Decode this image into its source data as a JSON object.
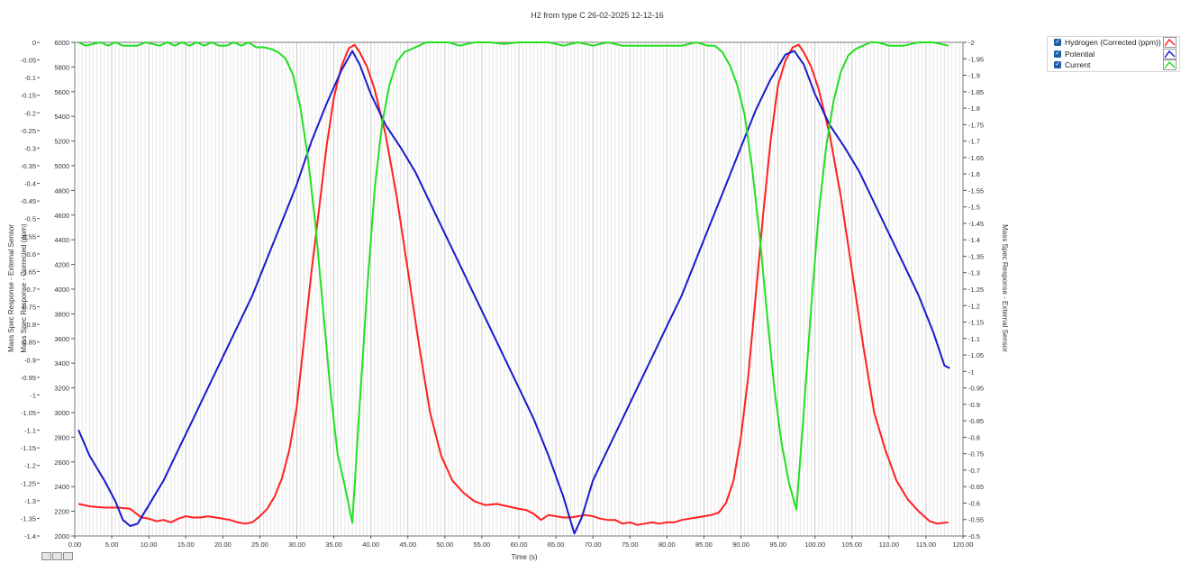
{
  "chart_data": {
    "type": "line",
    "title": "H2 from type C 26-02-2025 12-12-16",
    "xlabel": "Time (s)",
    "y_axes": {
      "outer_left": {
        "label": "Mass Spec Response - External Sensor",
        "range": [
          -1.4,
          0
        ],
        "ticks": [
          "0",
          "-0.05",
          "-0.1",
          "-0.15",
          "-0.2",
          "-0.25",
          "-0.3",
          "-0.35",
          "-0.4",
          "-0.45",
          "-0.5",
          "-0.55",
          "-0.6",
          "-0.65",
          "-0.7",
          "-0.75",
          "-0.8",
          "-0.85",
          "-0.9",
          "-0.95",
          "-1",
          "-1.05",
          "-1.1",
          "-1.15",
          "-1.2",
          "-1.25",
          "-1.3",
          "-1.35",
          "-1.4"
        ]
      },
      "inner_left": {
        "label": "Mass Spec Response - Corrected (ppm)",
        "range": [
          2000,
          6000
        ],
        "ticks": [
          "6000",
          "5800",
          "5600",
          "5400",
          "5200",
          "5000",
          "4800",
          "4600",
          "4400",
          "4200",
          "4000",
          "3800",
          "3600",
          "3400",
          "3200",
          "3000",
          "2800",
          "2600",
          "2400",
          "2200",
          "2000"
        ]
      },
      "right": {
        "label": "Mass Spec Response - External Sensor",
        "range": [
          -0.5,
          -2
        ],
        "ticks": [
          "-2",
          "-1.95",
          "-1.9",
          "-1.85",
          "-1.8",
          "-1.75",
          "-1.7",
          "-1.65",
          "-1.6",
          "-1.55",
          "-1.5",
          "-1.45",
          "-1.4",
          "-1.35",
          "-1.3",
          "-1.25",
          "-1.2",
          "-1.15",
          "-1.1",
          "-1.05",
          "-1",
          "-0.95",
          "-0.9",
          "-0.85",
          "-0.8",
          "-0.75",
          "-0.7",
          "-0.65",
          "-0.6",
          "-0.55",
          "-0.5"
        ]
      }
    },
    "xlim": [
      0,
      120
    ],
    "x_ticks": [
      "0.00",
      "5.00",
      "10.00",
      "15.00",
      "20.00",
      "25.00",
      "30.00",
      "35.00",
      "40.00",
      "45.00",
      "50.00",
      "55.00",
      "60.00",
      "65.00",
      "70.00",
      "75.00",
      "80.00",
      "85.00",
      "90.00",
      "95.00",
      "100.00",
      "105.00",
      "110.00",
      "115.00",
      "120.00"
    ],
    "grid": true,
    "legend_position": "top-right",
    "series": [
      {
        "name": "Hydrogen (Corrected (ppm))",
        "color": "#ff2020",
        "axis": "inner_left",
        "points": [
          [
            0.5,
            2260
          ],
          [
            2,
            2240
          ],
          [
            4,
            2230
          ],
          [
            6,
            2230
          ],
          [
            7.5,
            2220
          ],
          [
            9,
            2150
          ],
          [
            10,
            2140
          ],
          [
            11,
            2120
          ],
          [
            12,
            2130
          ],
          [
            13,
            2110
          ],
          [
            14,
            2140
          ],
          [
            15,
            2160
          ],
          [
            16,
            2150
          ],
          [
            17,
            2150
          ],
          [
            18,
            2160
          ],
          [
            19,
            2150
          ],
          [
            20,
            2140
          ],
          [
            21,
            2130
          ],
          [
            22,
            2110
          ],
          [
            23,
            2100
          ],
          [
            24,
            2110
          ],
          [
            25,
            2160
          ],
          [
            26,
            2220
          ],
          [
            27,
            2320
          ],
          [
            28,
            2470
          ],
          [
            29,
            2700
          ],
          [
            30,
            3050
          ],
          [
            31,
            3600
          ],
          [
            32,
            4150
          ],
          [
            33,
            4650
          ],
          [
            34,
            5150
          ],
          [
            35,
            5550
          ],
          [
            36,
            5800
          ],
          [
            37,
            5950
          ],
          [
            37.8,
            5980
          ],
          [
            38.5,
            5920
          ],
          [
            39.5,
            5800
          ],
          [
            40.5,
            5620
          ],
          [
            42,
            5250
          ],
          [
            43.5,
            4750
          ],
          [
            45,
            4150
          ],
          [
            46.5,
            3550
          ],
          [
            48,
            3000
          ],
          [
            49.5,
            2650
          ],
          [
            51,
            2450
          ],
          [
            52.5,
            2350
          ],
          [
            54,
            2280
          ],
          [
            55.5,
            2250
          ],
          [
            57,
            2260
          ],
          [
            58.5,
            2240
          ],
          [
            60,
            2220
          ],
          [
            61,
            2210
          ],
          [
            62,
            2180
          ],
          [
            63,
            2130
          ],
          [
            64,
            2170
          ],
          [
            65,
            2160
          ],
          [
            66,
            2150
          ],
          [
            67,
            2150
          ],
          [
            68,
            2160
          ],
          [
            69,
            2170
          ],
          [
            70,
            2160
          ],
          [
            71,
            2140
          ],
          [
            72,
            2130
          ],
          [
            73,
            2130
          ],
          [
            74,
            2100
          ],
          [
            75,
            2110
          ],
          [
            76,
            2090
          ],
          [
            77,
            2100
          ],
          [
            78,
            2110
          ],
          [
            79,
            2100
          ],
          [
            80,
            2110
          ],
          [
            81,
            2110
          ],
          [
            82,
            2130
          ],
          [
            83,
            2140
          ],
          [
            84,
            2150
          ],
          [
            85,
            2160
          ],
          [
            86,
            2170
          ],
          [
            87,
            2190
          ],
          [
            88,
            2270
          ],
          [
            89,
            2450
          ],
          [
            90,
            2800
          ],
          [
            91,
            3300
          ],
          [
            92,
            3950
          ],
          [
            93,
            4600
          ],
          [
            94,
            5200
          ],
          [
            95,
            5650
          ],
          [
            96,
            5850
          ],
          [
            97,
            5960
          ],
          [
            97.8,
            5980
          ],
          [
            98.5,
            5920
          ],
          [
            99.5,
            5800
          ],
          [
            100.5,
            5620
          ],
          [
            102,
            5250
          ],
          [
            103.5,
            4750
          ],
          [
            105,
            4150
          ],
          [
            106.5,
            3550
          ],
          [
            108,
            3000
          ],
          [
            109.5,
            2700
          ],
          [
            111,
            2450
          ],
          [
            112.5,
            2300
          ],
          [
            114,
            2200
          ],
          [
            115.5,
            2120
          ],
          [
            116.5,
            2100
          ],
          [
            118,
            2110
          ]
        ]
      },
      {
        "name": "Potential",
        "color": "#1a1acc",
        "axis": "inner_left",
        "points": [
          [
            0.5,
            2860
          ],
          [
            2,
            2650
          ],
          [
            4,
            2450
          ],
          [
            5.5,
            2280
          ],
          [
            6.5,
            2130
          ],
          [
            7.5,
            2080
          ],
          [
            8.5,
            2100
          ],
          [
            10,
            2250
          ],
          [
            12,
            2450
          ],
          [
            14,
            2700
          ],
          [
            16,
            2950
          ],
          [
            18,
            3200
          ],
          [
            20,
            3450
          ],
          [
            22,
            3700
          ],
          [
            24,
            3950
          ],
          [
            26,
            4250
          ],
          [
            28,
            4550
          ],
          [
            30,
            4850
          ],
          [
            32,
            5200
          ],
          [
            34,
            5500
          ],
          [
            36,
            5770
          ],
          [
            37.5,
            5930
          ],
          [
            38.5,
            5820
          ],
          [
            40,
            5580
          ],
          [
            42,
            5330
          ],
          [
            44,
            5150
          ],
          [
            46,
            4950
          ],
          [
            48,
            4700
          ],
          [
            50,
            4450
          ],
          [
            52,
            4200
          ],
          [
            54,
            3950
          ],
          [
            56,
            3700
          ],
          [
            58,
            3450
          ],
          [
            60,
            3200
          ],
          [
            62,
            2950
          ],
          [
            64,
            2650
          ],
          [
            66,
            2320
          ],
          [
            67.5,
            2020
          ],
          [
            68.5,
            2150
          ],
          [
            70,
            2450
          ],
          [
            72,
            2700
          ],
          [
            74,
            2950
          ],
          [
            76,
            3200
          ],
          [
            78,
            3450
          ],
          [
            80,
            3700
          ],
          [
            82,
            3950
          ],
          [
            84,
            4250
          ],
          [
            86,
            4550
          ],
          [
            88,
            4850
          ],
          [
            90,
            5150
          ],
          [
            92,
            5450
          ],
          [
            94,
            5700
          ],
          [
            96,
            5900
          ],
          [
            97.2,
            5930
          ],
          [
            98.5,
            5820
          ],
          [
            100,
            5580
          ],
          [
            102,
            5330
          ],
          [
            104,
            5150
          ],
          [
            106,
            4950
          ],
          [
            108,
            4700
          ],
          [
            110,
            4450
          ],
          [
            112,
            4200
          ],
          [
            114,
            3950
          ],
          [
            116,
            3650
          ],
          [
            117.5,
            3380
          ],
          [
            118.2,
            3360
          ]
        ]
      },
      {
        "name": "Current",
        "color": "#22e022",
        "axis": "right",
        "points": [
          [
            0.5,
            -2
          ],
          [
            1.5,
            -1.99
          ],
          [
            2.5,
            -1.995
          ],
          [
            3.5,
            -2
          ],
          [
            4.5,
            -1.99
          ],
          [
            5.5,
            -2
          ],
          [
            6.5,
            -1.99
          ],
          [
            7.5,
            -1.99
          ],
          [
            8.5,
            -1.99
          ],
          [
            9.5,
            -2
          ],
          [
            10.5,
            -1.995
          ],
          [
            11.5,
            -1.99
          ],
          [
            12.5,
            -2
          ],
          [
            13.5,
            -1.99
          ],
          [
            14.5,
            -2
          ],
          [
            15.5,
            -1.99
          ],
          [
            16.5,
            -2
          ],
          [
            17.5,
            -1.99
          ],
          [
            18.5,
            -2
          ],
          [
            19.5,
            -1.99
          ],
          [
            20.5,
            -1.99
          ],
          [
            21.5,
            -2
          ],
          [
            22.5,
            -1.99
          ],
          [
            23.5,
            -2
          ],
          [
            24.5,
            -1.985
          ],
          [
            25.5,
            -1.985
          ],
          [
            26.5,
            -1.98
          ],
          [
            27.5,
            -1.97
          ],
          [
            28.5,
            -1.95
          ],
          [
            29.5,
            -1.9
          ],
          [
            30.5,
            -1.8
          ],
          [
            31.5,
            -1.65
          ],
          [
            32.5,
            -1.45
          ],
          [
            33.5,
            -1.2
          ],
          [
            34.5,
            -0.95
          ],
          [
            35.5,
            -0.75
          ],
          [
            36.5,
            -0.65
          ],
          [
            37.5,
            -0.54
          ],
          [
            38.5,
            -0.9
          ],
          [
            39.5,
            -1.25
          ],
          [
            40.5,
            -1.55
          ],
          [
            41.5,
            -1.75
          ],
          [
            42.5,
            -1.87
          ],
          [
            43.5,
            -1.94
          ],
          [
            44.5,
            -1.97
          ],
          [
            45.5,
            -1.98
          ],
          [
            46.5,
            -1.99
          ],
          [
            47.5,
            -2
          ],
          [
            48.5,
            -2
          ],
          [
            49.5,
            -2
          ],
          [
            50.5,
            -2
          ],
          [
            52,
            -1.99
          ],
          [
            54,
            -2
          ],
          [
            56,
            -2
          ],
          [
            58,
            -1.995
          ],
          [
            60,
            -2
          ],
          [
            62,
            -2
          ],
          [
            64,
            -2
          ],
          [
            66,
            -1.99
          ],
          [
            68,
            -2
          ],
          [
            70,
            -1.99
          ],
          [
            72,
            -2
          ],
          [
            74,
            -1.99
          ],
          [
            76,
            -1.99
          ],
          [
            78,
            -1.99
          ],
          [
            80,
            -1.99
          ],
          [
            82,
            -1.99
          ],
          [
            84,
            -2
          ],
          [
            85.5,
            -1.99
          ],
          [
            86.5,
            -1.99
          ],
          [
            87.5,
            -1.97
          ],
          [
            88.5,
            -1.93
          ],
          [
            89.5,
            -1.87
          ],
          [
            90.5,
            -1.78
          ],
          [
            91.5,
            -1.62
          ],
          [
            92.5,
            -1.42
          ],
          [
            93.5,
            -1.18
          ],
          [
            94.5,
            -0.95
          ],
          [
            95.5,
            -0.78
          ],
          [
            96.5,
            -0.66
          ],
          [
            97.5,
            -0.58
          ],
          [
            98.5,
            -0.88
          ],
          [
            99.5,
            -1.2
          ],
          [
            100.5,
            -1.48
          ],
          [
            101.5,
            -1.68
          ],
          [
            102.5,
            -1.82
          ],
          [
            103.5,
            -1.91
          ],
          [
            104.5,
            -1.96
          ],
          [
            105.5,
            -1.98
          ],
          [
            106.5,
            -1.99
          ],
          [
            107.5,
            -2
          ],
          [
            108.5,
            -2
          ],
          [
            110,
            -1.99
          ],
          [
            112,
            -1.99
          ],
          [
            114,
            -2
          ],
          [
            116,
            -2
          ],
          [
            117,
            -1.995
          ],
          [
            118,
            -1.99
          ]
        ]
      }
    ]
  },
  "legend": {
    "items": [
      {
        "label": "Hydrogen (Corrected (ppm))",
        "color": "#ff2020"
      },
      {
        "label": "Potential",
        "color": "#1a1acc"
      },
      {
        "label": "Current",
        "color": "#22e022"
      }
    ]
  },
  "toolbar": {
    "icons": [
      "cursor-tool-icon",
      "zoom-tool-icon",
      "pan-tool-icon"
    ]
  }
}
